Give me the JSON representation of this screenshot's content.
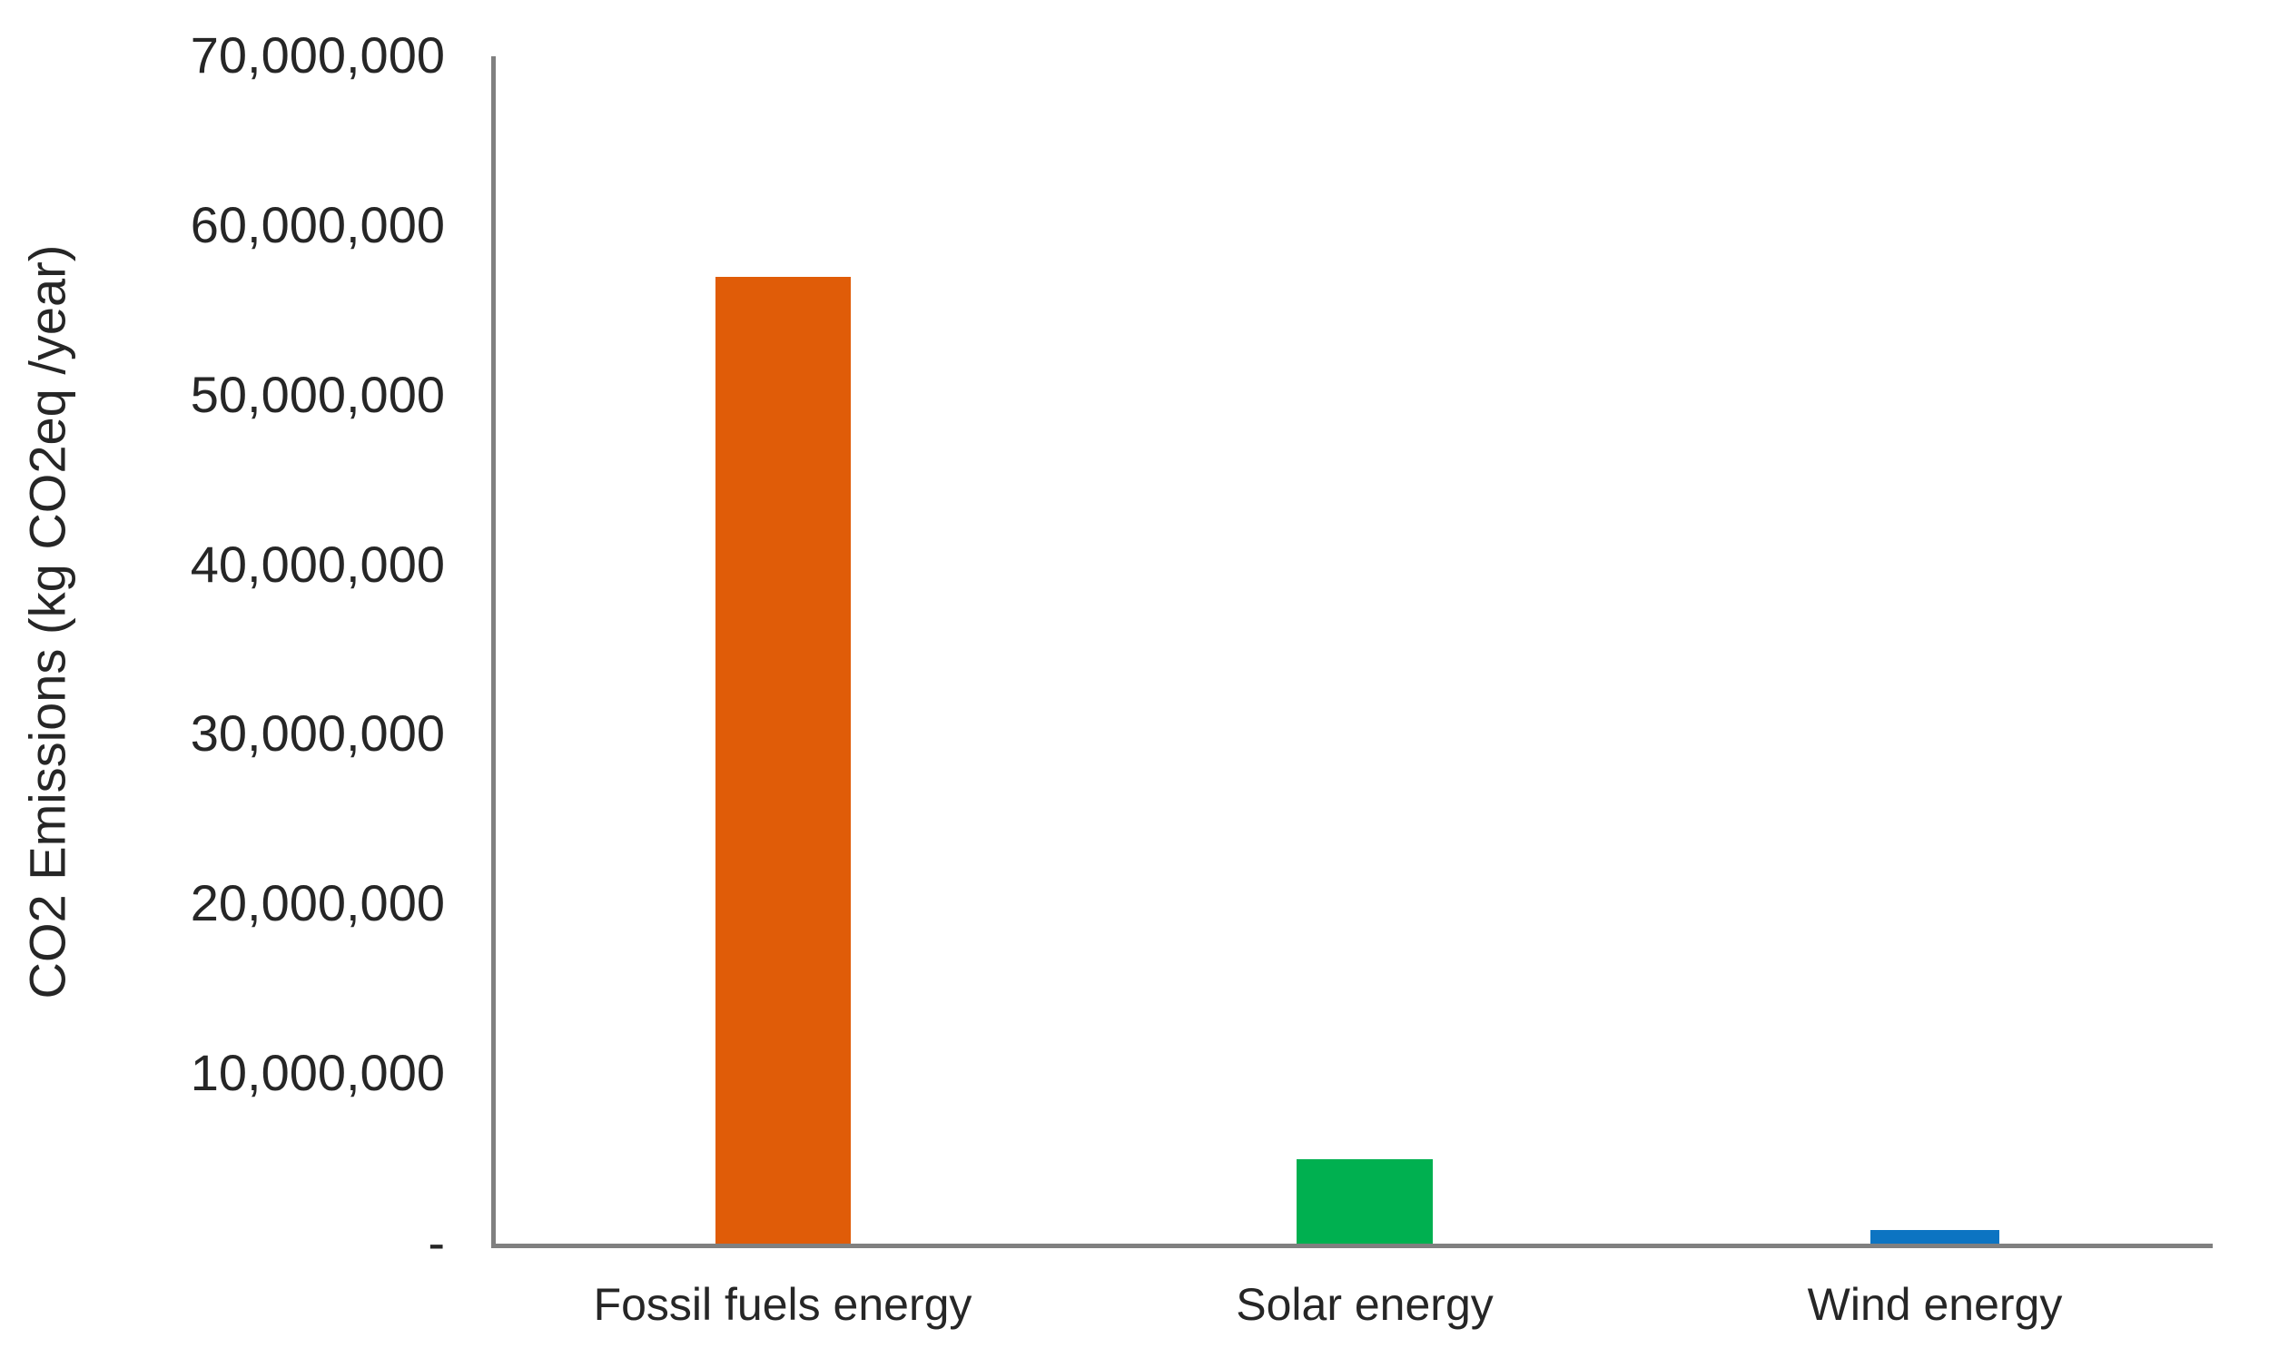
{
  "chart_data": {
    "type": "bar",
    "title": "",
    "categories": [
      "Fossil fuels energy",
      "Solar energy",
      "Wind energy"
    ],
    "values": [
      57000000,
      5000000,
      800000
    ],
    "bar_colors": [
      "#E05C08",
      "#00B050",
      "#0C74C2"
    ],
    "xlabel": "",
    "ylabel": "CO2 Emissions (kg CO2eq /year)",
    "ylim": [
      0,
      70000000
    ],
    "ytick_interval": 10000000,
    "ytick_labels": [
      "-",
      "10,000,000",
      "20,000,000",
      "30,000,000",
      "40,000,000",
      "50,000,000",
      "60,000,000",
      "70,000,000"
    ],
    "grid": false,
    "legend": "none",
    "axis_color": "#808080",
    "text_color": "#262626",
    "background_color": "#FFFFFF"
  }
}
